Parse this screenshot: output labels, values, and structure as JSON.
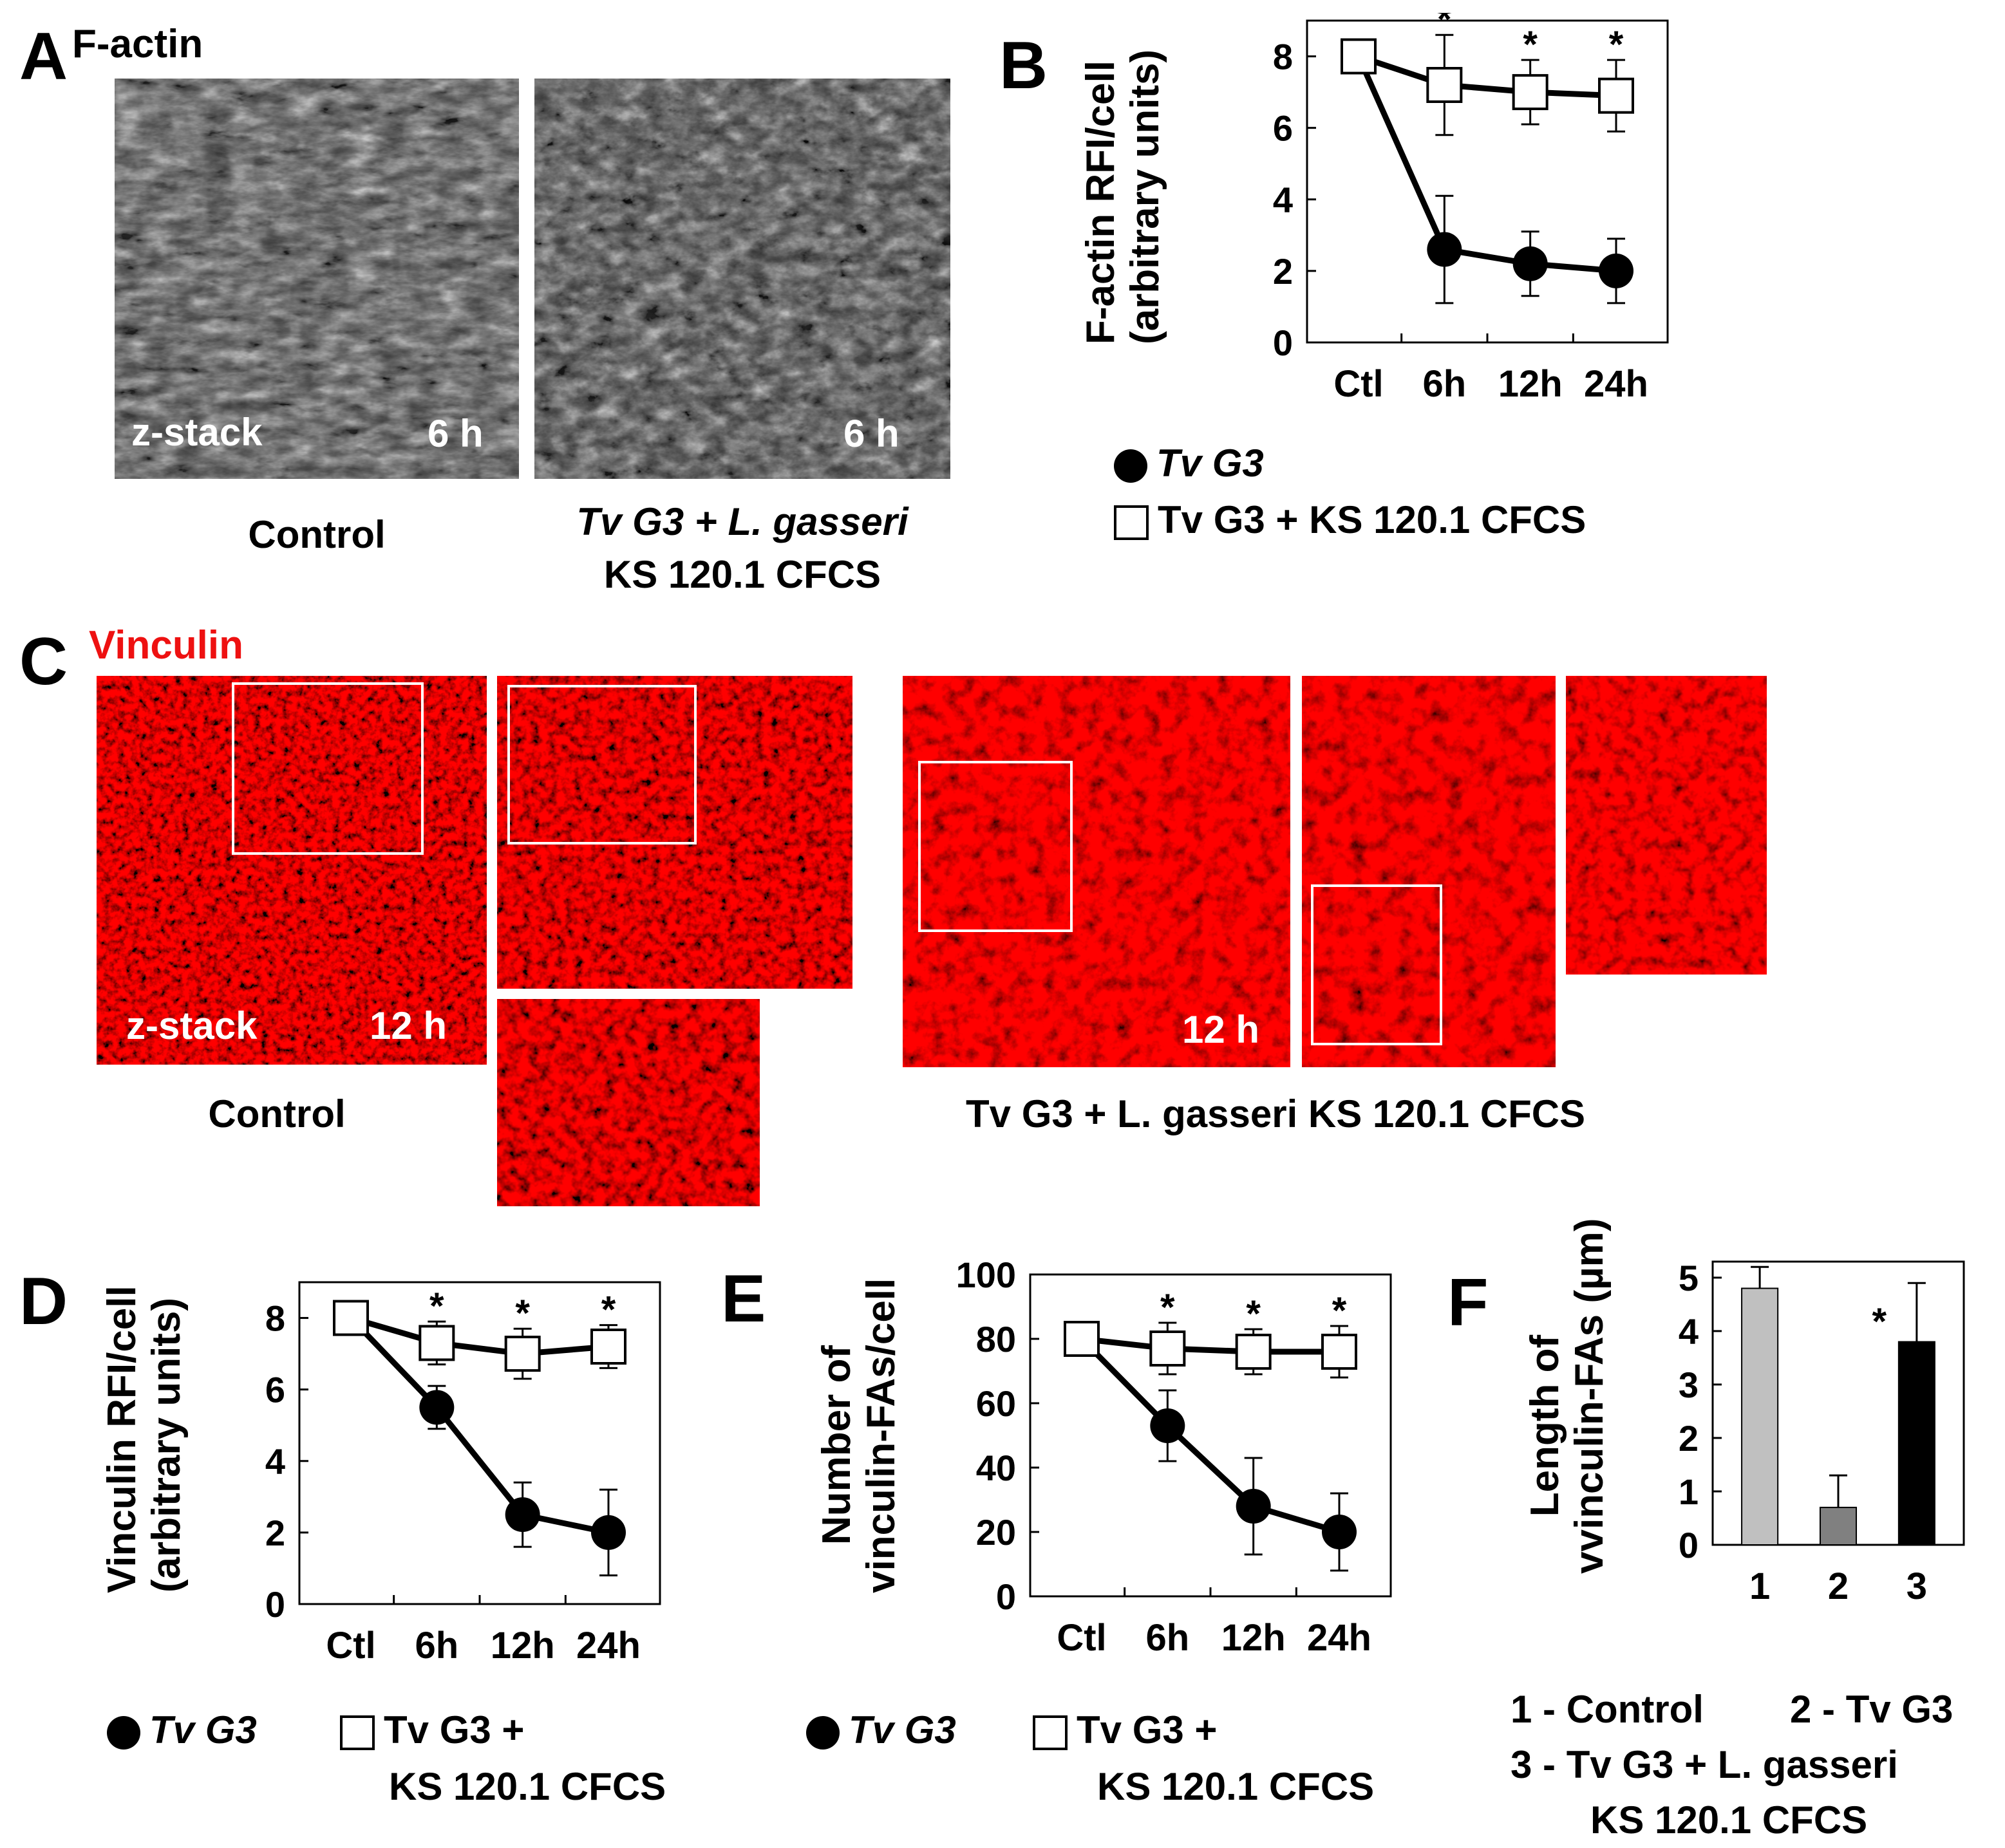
{
  "panels": {
    "A": {
      "letter": "A",
      "stain": "F-actin",
      "images": [
        {
          "overlay_left": "z-stack",
          "overlay_right": "6 h",
          "caption": [
            "Control"
          ]
        },
        {
          "overlay_left": "",
          "overlay_right": "6 h",
          "caption": [
            "Tv G3 + L. gasseri",
            "KS 120.1 CFCS"
          ]
        }
      ]
    },
    "B": {
      "letter": "B"
    },
    "C": {
      "letter": "C",
      "stain": "Vinculin",
      "stain_color": "#ee1111",
      "control": {
        "overlay_left": "z-stack",
        "overlay_right": "12 h",
        "caption": "Control"
      },
      "treated": {
        "overlay_right": "12 h",
        "caption": "Tv G3 + L. gasseri KS 120.1 CFCS"
      }
    },
    "D": {
      "letter": "D"
    },
    "E": {
      "letter": "E"
    },
    "F": {
      "letter": "F",
      "legend": [
        "1 - Control",
        "2 - Tv G3",
        "3 - Tv G3 + L. gasseri",
        "KS 120.1 CFCS"
      ]
    }
  },
  "legends": {
    "B": {
      "dot": "Tv G3",
      "square": "Tv G3 + KS 120.1 CFCS"
    },
    "D": {
      "dot": "Tv G3",
      "square": "Tv G3 +",
      "square_line2": "KS 120.1 CFCS"
    },
    "E": {
      "dot": "Tv G3",
      "square": "Tv G3 +",
      "square_line2": "KS 120.1 CFCS"
    }
  },
  "chart_data": [
    {
      "id": "B",
      "type": "line",
      "ylabel": [
        "F-actin RFI/cell",
        "(arbitrary units)"
      ],
      "categories": [
        "Ctl",
        "6h",
        "12h",
        "24h"
      ],
      "ylim": [
        0,
        9
      ],
      "yticks": [
        0,
        2,
        4,
        6,
        8
      ],
      "grid": false,
      "series": [
        {
          "name": "Tv G3",
          "marker": "circle",
          "values": [
            8.0,
            2.6,
            2.2,
            2.0
          ],
          "err": [
            0,
            1.5,
            0.9,
            0.9
          ]
        },
        {
          "name": "Tv G3 + KS 120.1 CFCS",
          "marker": "square",
          "values": [
            8.0,
            7.2,
            7.0,
            6.9
          ],
          "err": [
            0,
            1.4,
            0.9,
            1.0
          ]
        }
      ],
      "significance": [
        "",
        "*",
        "*",
        "*"
      ]
    },
    {
      "id": "D",
      "type": "line",
      "ylabel": [
        "Vinculin RFI/cell",
        "(arbitrary units)"
      ],
      "categories": [
        "Ctl",
        "6h",
        "12h",
        "24h"
      ],
      "ylim": [
        0,
        9
      ],
      "yticks": [
        0,
        2,
        4,
        6,
        8
      ],
      "grid": false,
      "series": [
        {
          "name": "Tv G3",
          "marker": "circle",
          "values": [
            8.0,
            5.5,
            2.5,
            2.0
          ],
          "err": [
            0,
            0.6,
            0.9,
            1.2
          ]
        },
        {
          "name": "Tv G3 + KS 120.1 CFCS",
          "marker": "square",
          "values": [
            8.0,
            7.3,
            7.0,
            7.2
          ],
          "err": [
            0,
            0.6,
            0.7,
            0.6
          ]
        }
      ],
      "significance": [
        "",
        "*",
        "*",
        "*"
      ]
    },
    {
      "id": "E",
      "type": "line",
      "ylabel": [
        "Number of",
        "vinculin-FAs/cell"
      ],
      "categories": [
        "Ctl",
        "6h",
        "12h",
        "24h"
      ],
      "ylim": [
        0,
        100
      ],
      "yticks": [
        0,
        20,
        40,
        60,
        80,
        100
      ],
      "grid": false,
      "series": [
        {
          "name": "Tv G3",
          "marker": "circle",
          "values": [
            80,
            53,
            28,
            20
          ],
          "err": [
            0,
            11,
            15,
            12
          ]
        },
        {
          "name": "Tv G3 + KS 120.1 CFCS",
          "marker": "square",
          "values": [
            80,
            77,
            76,
            76
          ],
          "err": [
            0,
            8,
            7,
            8
          ]
        }
      ],
      "significance": [
        "",
        "*",
        "*",
        "*"
      ]
    },
    {
      "id": "F",
      "type": "bar",
      "ylabel": [
        "Length of",
        "vvinculin-FAs (µm)"
      ],
      "categories": [
        "1",
        "2",
        "3"
      ],
      "ylim": [
        0,
        5.3
      ],
      "yticks": [
        0,
        1,
        2,
        3,
        4,
        5
      ],
      "grid": false,
      "values": [
        4.8,
        0.7,
        3.8
      ],
      "err": [
        0.4,
        0.6,
        1.1
      ],
      "colors": [
        "#c0c0c0",
        "#808080",
        "#000000"
      ],
      "significance": [
        "",
        "",
        "*"
      ]
    }
  ]
}
